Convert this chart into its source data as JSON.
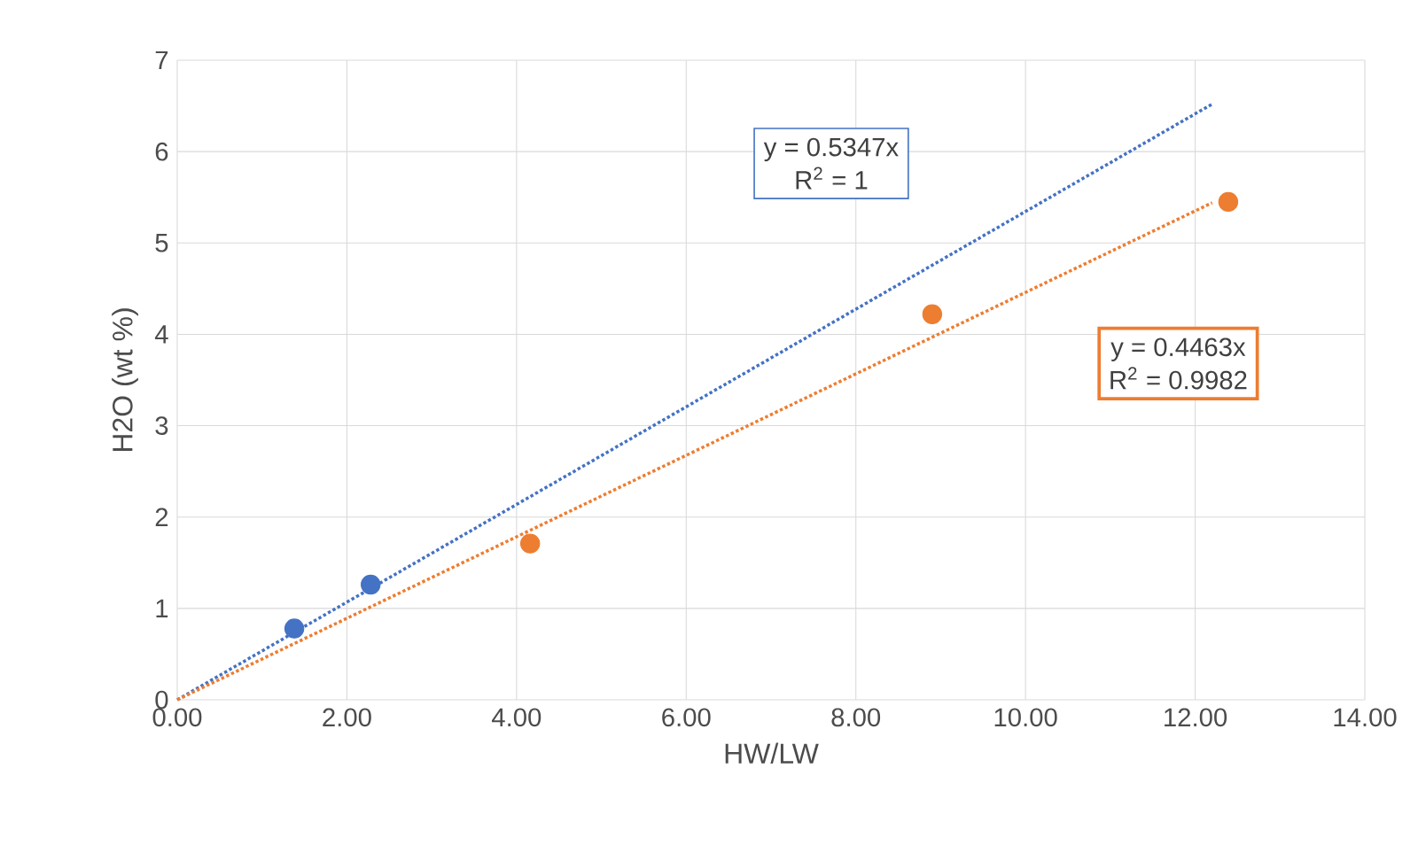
{
  "chart_data": {
    "type": "scatter",
    "xlabel": "HW/LW",
    "ylabel": "H2O (wt %)",
    "xlim": [
      0,
      14
    ],
    "ylim": [
      0,
      7
    ],
    "xticks": [
      {
        "value": 0,
        "label": "0.00"
      },
      {
        "value": 2,
        "label": "2.00"
      },
      {
        "value": 4,
        "label": "4.00"
      },
      {
        "value": 6,
        "label": "6.00"
      },
      {
        "value": 8,
        "label": "8.00"
      },
      {
        "value": 10,
        "label": "10.00"
      },
      {
        "value": 12,
        "label": "12.00"
      },
      {
        "value": 14,
        "label": "14.00"
      }
    ],
    "yticks": [
      0,
      1,
      2,
      3,
      4,
      5,
      6,
      7
    ],
    "grid": true,
    "marker": "circle",
    "series": [
      {
        "color": "#4472c4",
        "x": [
          1.38,
          2.28
        ],
        "values": [
          0.78,
          1.26
        ]
      },
      {
        "color": "#ed7d31",
        "x": [
          4.16,
          8.9,
          12.39
        ],
        "values": [
          1.71,
          4.22,
          5.45
        ]
      },
      {
        "type": "line",
        "line_style": "dotted",
        "marker": "none",
        "color": "#4472c4",
        "x": [
          0,
          12.2
        ],
        "values": [
          0,
          6.52
        ]
      },
      {
        "type": "line",
        "line_style": "dotted",
        "marker": "none",
        "color": "#ed7d31",
        "x": [
          0,
          12.2
        ],
        "values": [
          0,
          5.44
        ]
      }
    ],
    "annotations": [
      "y = 0.5347x",
      "R$^{2}$ = 1",
      "y = 0.4463x",
      "R$^{2}$ = 0.9982"
    ]
  }
}
